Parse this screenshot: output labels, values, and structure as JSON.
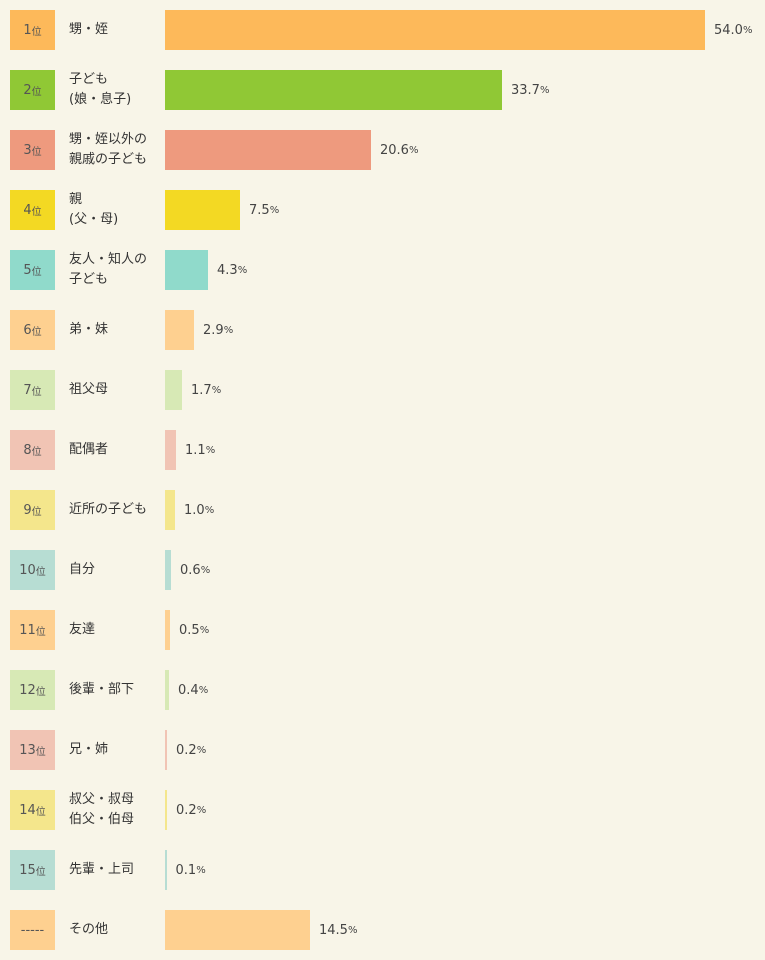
{
  "chart_data": {
    "type": "bar",
    "orientation": "horizontal",
    "xlim": [
      0,
      54.0
    ],
    "rank_suffix": "位",
    "unit": "%",
    "rows": [
      {
        "rank": "1",
        "category": "甥・姪",
        "value": 54.0,
        "value_label": "54.0",
        "color": "#fdb95a"
      },
      {
        "rank": "2",
        "category": "子ども\n(娘・息子)",
        "value": 33.7,
        "value_label": "33.7",
        "color": "#90c835"
      },
      {
        "rank": "3",
        "category": "甥・姪以外の\n親戚の子ども",
        "value": 20.6,
        "value_label": "20.6",
        "color": "#ee9a7e"
      },
      {
        "rank": "4",
        "category": "親\n(父・母)",
        "value": 7.5,
        "value_label": "7.5",
        "color": "#f3d923"
      },
      {
        "rank": "5",
        "category": "友人・知人の\n子ども",
        "value": 4.3,
        "value_label": "4.3",
        "color": "#90dacb"
      },
      {
        "rank": "6",
        "category": "弟・妹",
        "value": 2.9,
        "value_label": "2.9",
        "color": "#fed090"
      },
      {
        "rank": "7",
        "category": "祖父母",
        "value": 1.7,
        "value_label": "1.7",
        "color": "#d7e9b5"
      },
      {
        "rank": "8",
        "category": "配偶者",
        "value": 1.1,
        "value_label": "1.1",
        "color": "#f1c4b4"
      },
      {
        "rank": "9",
        "category": "近所の子ども",
        "value": 1.0,
        "value_label": "1.0",
        "color": "#f4e68c"
      },
      {
        "rank": "10",
        "category": "自分",
        "value": 0.6,
        "value_label": "0.6",
        "color": "#b7ddd3"
      },
      {
        "rank": "11",
        "category": "友達",
        "value": 0.5,
        "value_label": "0.5",
        "color": "#fed090"
      },
      {
        "rank": "12",
        "category": "後輩・部下",
        "value": 0.4,
        "value_label": "0.4",
        "color": "#d7e9b5"
      },
      {
        "rank": "13",
        "category": "兄・姉",
        "value": 0.2,
        "value_label": "0.2",
        "color": "#f1c4b4"
      },
      {
        "rank": "14",
        "category": "叔父・叔母\n伯父・伯母",
        "value": 0.2,
        "value_label": "0.2",
        "color": "#f4e68c"
      },
      {
        "rank": "15",
        "category": "先輩・上司",
        "value": 0.1,
        "value_label": "0.1",
        "color": "#b7ddd3"
      },
      {
        "rank": "-----",
        "category": "その他",
        "value": 14.5,
        "value_label": "14.5",
        "color": "#fed090"
      }
    ]
  }
}
